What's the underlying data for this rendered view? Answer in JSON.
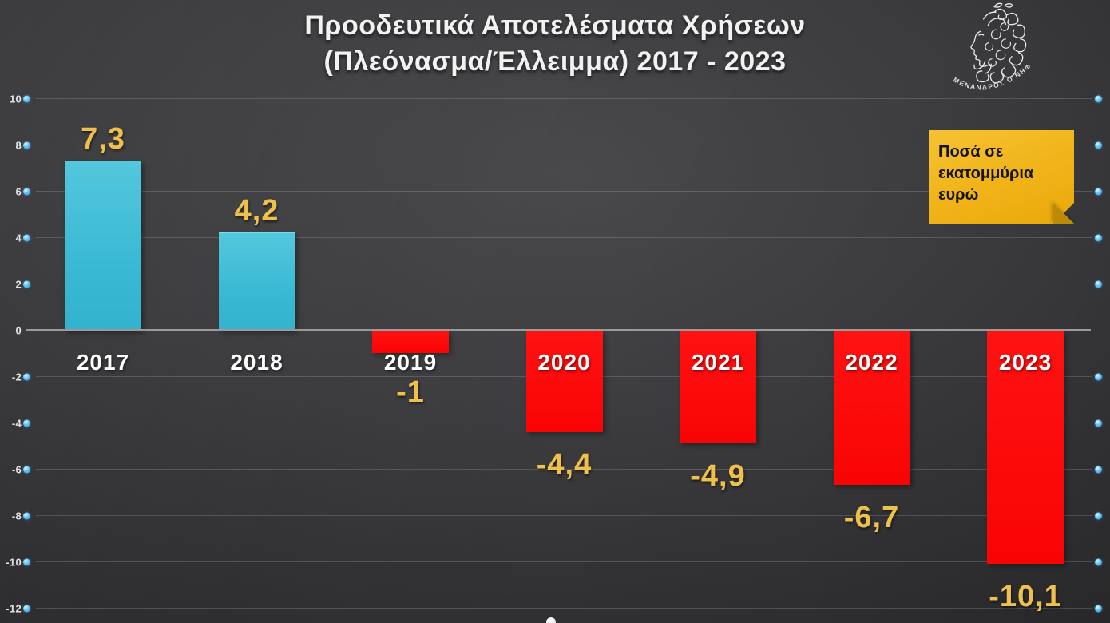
{
  "title": {
    "line1": "Προοδευτικά Αποτελέσματα Χρήσεων",
    "line2": "(Πλεόνασμα/Έλλειμμα) 2017 - 2023"
  },
  "note": {
    "text": "Ποσά σε εκατομμύρια ευρώ",
    "bg_color": "#f0b318"
  },
  "logo": {
    "caption": "ΜΕΝΑΝΔΡΟΣ Ο ΝΗΦΙΕΥΣ"
  },
  "chart_data": {
    "type": "bar",
    "title": "Προοδευτικά Αποτελέσματα Χρήσεων (Πλεόνασμα/Έλλειμμα) 2017 - 2023",
    "categories": [
      "2017",
      "2018",
      "2019",
      "2020",
      "2021",
      "2022",
      "2023"
    ],
    "values": [
      7.3,
      4.2,
      -1,
      -4.4,
      -4.9,
      -6.7,
      -10.1
    ],
    "value_labels": [
      "7,3",
      "4,2",
      "-1",
      "-4,4",
      "-4,9",
      "-6,7",
      "-10,1"
    ],
    "units": "εκατομμύρια ευρώ",
    "xlabel": "",
    "ylabel": "",
    "ylim": [
      -12,
      10
    ],
    "y_ticks": [
      10,
      8,
      6,
      4,
      2,
      0,
      -2,
      -4,
      -6,
      -8,
      -10,
      -12
    ],
    "grid": true,
    "legend": false,
    "colors": {
      "positive_bar": "#3ab9d4",
      "negative_bar": "#f90404",
      "value_label": "#efc04b",
      "category_label": "#ffffff",
      "tick_dot": "#4fb2ec",
      "gridline": "#5a5a5a",
      "zero_line": "#9b9b9b",
      "background": "#3d3d40"
    }
  }
}
